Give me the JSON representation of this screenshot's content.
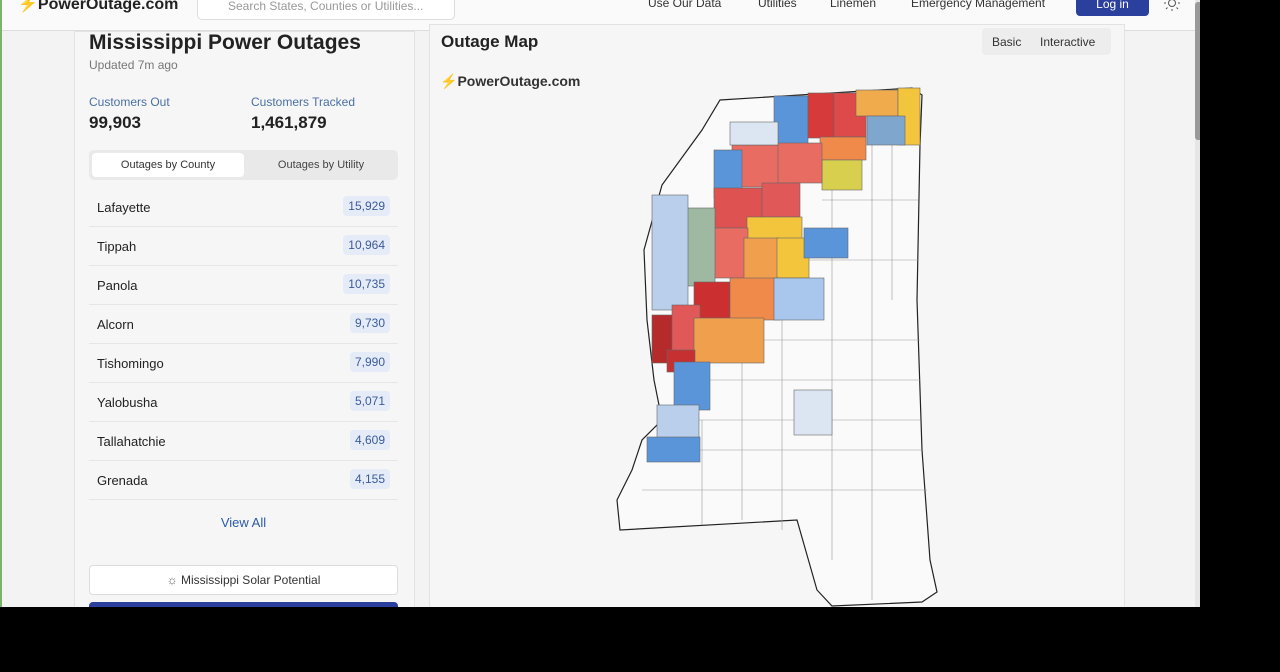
{
  "header": {
    "logo": "PowerOutage.com",
    "search_placeholder": "Search States, Counties or Utilities...",
    "nav": [
      "Use Our Data",
      "Utilities",
      "Linemen",
      "Emergency Management"
    ],
    "login": "Log in"
  },
  "sidebar": {
    "title": "Mississippi Power Outages",
    "updated": "Updated 7m ago",
    "stats": [
      {
        "label": "Customers Out",
        "value": "99,903"
      },
      {
        "label": "Customers Tracked",
        "value": "1,461,879"
      }
    ],
    "tabs": [
      "Outages by County",
      "Outages by Utility"
    ],
    "counties": [
      {
        "name": "Lafayette",
        "outages": "15,929"
      },
      {
        "name": "Tippah",
        "outages": "10,964"
      },
      {
        "name": "Panola",
        "outages": "10,735"
      },
      {
        "name": "Alcorn",
        "outages": "9,730"
      },
      {
        "name": "Tishomingo",
        "outages": "7,990"
      },
      {
        "name": "Yalobusha",
        "outages": "5,071"
      },
      {
        "name": "Tallahatchie",
        "outages": "4,609"
      },
      {
        "name": "Grenada",
        "outages": "4,155"
      }
    ],
    "view_all": "View All",
    "solar": "Mississippi Solar Potential"
  },
  "map": {
    "title": "Outage Map",
    "modes": [
      "Basic",
      "Interactive"
    ],
    "watermark": "PowerOutage.com"
  }
}
